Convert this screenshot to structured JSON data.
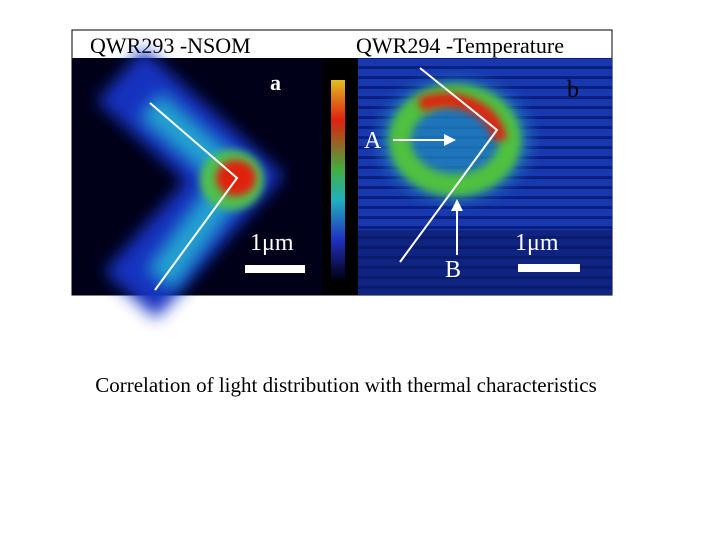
{
  "figure": {
    "left_title": "QWR293 -NSOM",
    "right_title": "QWR294 -Temperature",
    "left_label": "a",
    "right_label": "b",
    "left_scale": "1μm",
    "right_scale": "1μm",
    "marker_a": "A",
    "marker_b": "B"
  },
  "caption": "Correlation of light distribution with thermal characteristics"
}
